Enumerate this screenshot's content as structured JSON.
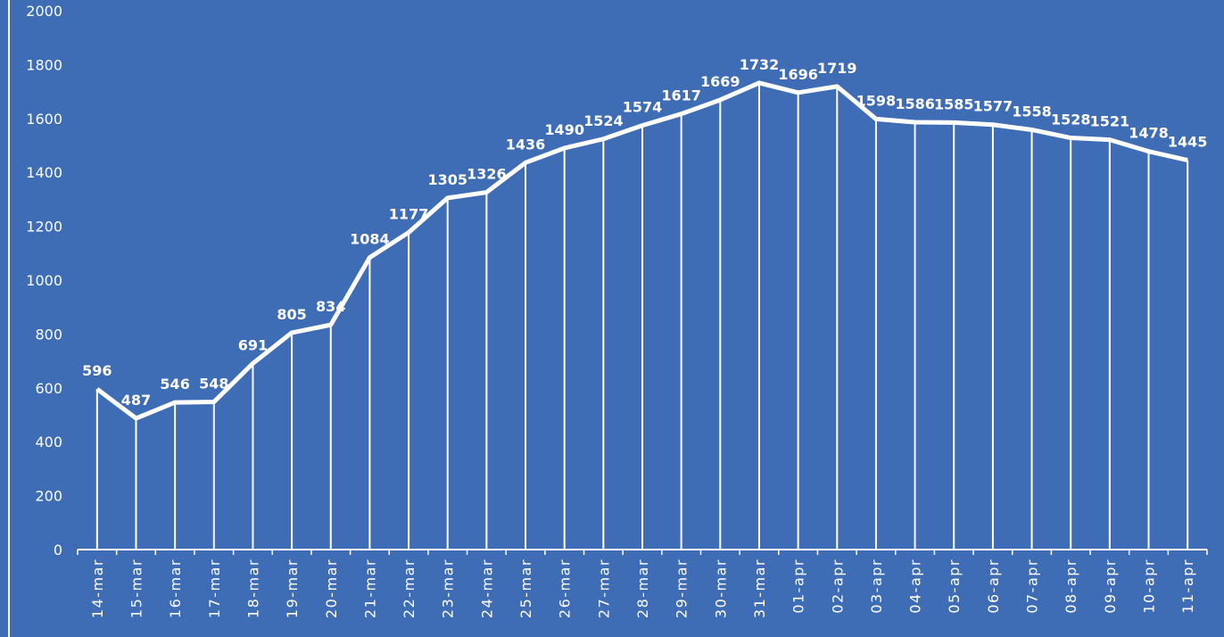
{
  "chart_data": {
    "type": "line",
    "color": "#ffffff",
    "background": "#3f6db5",
    "categories": [
      "14-mar",
      "15-mar",
      "16-mar",
      "17-mar",
      "18-mar",
      "19-mar",
      "20-mar",
      "21-mar",
      "22-mar",
      "23-mar",
      "24-mar",
      "25-mar",
      "26-mar",
      "27-mar",
      "28-mar",
      "29-mar",
      "30-mar",
      "31-mar",
      "01-apr",
      "02-apr",
      "03-apr",
      "04-apr",
      "05-apr",
      "06-apr",
      "07-apr",
      "08-apr",
      "09-apr",
      "10-apr",
      "11-apr"
    ],
    "values": [
      596,
      487,
      546,
      548,
      691,
      805,
      834,
      1084,
      1177,
      1305,
      1326,
      1436,
      1490,
      1524,
      1574,
      1617,
      1669,
      1732,
      1696,
      1719,
      1598,
      1586,
      1585,
      1577,
      1558,
      1528,
      1521,
      1478,
      1445
    ],
    "ylim": [
      0,
      2000
    ],
    "yticks": [
      0,
      200,
      400,
      600,
      800,
      1000,
      1200,
      1400,
      1600,
      1800,
      2000
    ],
    "drop_lines": true,
    "data_labels": true
  }
}
